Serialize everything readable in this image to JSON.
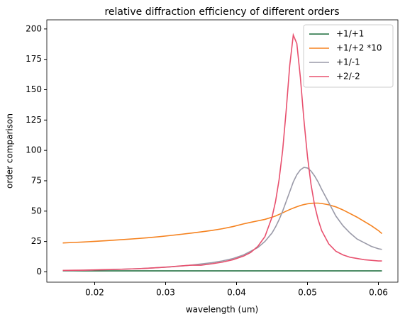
{
  "chart_data": {
    "type": "line",
    "title": "relative diffraction efficiency of different orders",
    "x_label": "wavelength (um)",
    "y_label": "order comparison",
    "x": [
      0.0155,
      0.017,
      0.0185,
      0.02,
      0.0215,
      0.023,
      0.0245,
      0.026,
      0.0275,
      0.029,
      0.0305,
      0.032,
      0.0335,
      0.035,
      0.0365,
      0.038,
      0.0395,
      0.041,
      0.042,
      0.043,
      0.044,
      0.045,
      0.0455,
      0.046,
      0.0465,
      0.047,
      0.0475,
      0.048,
      0.0485,
      0.049,
      0.0495,
      0.05,
      0.0505,
      0.051,
      0.0515,
      0.052,
      0.053,
      0.054,
      0.055,
      0.056,
      0.057,
      0.058,
      0.059,
      0.06,
      0.0605
    ],
    "series": [
      {
        "name": "+1/+1",
        "color": "#1a6b3a",
        "values": [
          0.8,
          0.8,
          0.8,
          0.8,
          0.8,
          0.8,
          0.8,
          0.8,
          0.8,
          0.8,
          0.8,
          0.8,
          0.8,
          0.8,
          0.8,
          0.8,
          0.8,
          0.8,
          0.8,
          0.8,
          0.8,
          0.8,
          0.8,
          0.8,
          0.8,
          0.8,
          0.8,
          0.8,
          0.8,
          0.8,
          0.8,
          0.8,
          0.8,
          0.8,
          0.8,
          0.8,
          0.8,
          0.8,
          0.8,
          0.8,
          0.8,
          0.8,
          0.8,
          0.8,
          0.8
        ]
      },
      {
        "name": "+1/+2 *10",
        "color": "#f5821f",
        "values": [
          23.8,
          24.2,
          24.6,
          25.1,
          25.6,
          26.2,
          26.8,
          27.4,
          28.1,
          28.9,
          29.8,
          30.8,
          31.8,
          32.9,
          34.1,
          35.5,
          37.3,
          39.5,
          40.8,
          42,
          43.2,
          45,
          46,
          47.3,
          48.6,
          50,
          51.3,
          52.5,
          53.6,
          54.6,
          55.4,
          56,
          56.4,
          56.6,
          56.6,
          56.3,
          55.2,
          53.5,
          51,
          48,
          45,
          41.5,
          38,
          34,
          31.5
        ]
      },
      {
        "name": "+1/-1",
        "color": "#9a9aa8",
        "values": [
          1.0,
          1.1,
          1.3,
          1.5,
          1.7,
          2.0,
          2.3,
          2.6,
          3.0,
          3.5,
          4.0,
          4.7,
          5.5,
          6.5,
          7.5,
          9,
          11,
          14,
          17,
          20,
          25,
          32,
          37,
          43,
          50,
          58,
          66,
          74,
          80,
          84,
          86,
          85.5,
          83,
          79,
          74,
          68,
          57,
          46,
          38,
          32,
          27,
          24,
          21,
          19,
          18.5
        ]
      },
      {
        "name": "+2/-2",
        "color": "#e8506e",
        "values": [
          1.2,
          1.3,
          1.4,
          1.6,
          1.8,
          2.0,
          2.3,
          2.6,
          3.0,
          3.5,
          4.1,
          4.8,
          5.5,
          5.5,
          6.6,
          8.0,
          10,
          13,
          16,
          21,
          29,
          45,
          58,
          76,
          100,
          133,
          170,
          195,
          188,
          160,
          125,
          95,
          72,
          55,
          43,
          34,
          23,
          17,
          14,
          12,
          11,
          10,
          9.5,
          9,
          9
        ]
      }
    ],
    "xlim": [
      0.01325,
      0.06275
    ],
    "ylim": [
      -8.5,
      207.5
    ],
    "xticks": [
      0.02,
      0.03,
      0.04,
      0.05,
      0.06
    ],
    "yticks": [
      0,
      25,
      50,
      75,
      100,
      125,
      150,
      175,
      200
    ],
    "legend": "upper right"
  }
}
